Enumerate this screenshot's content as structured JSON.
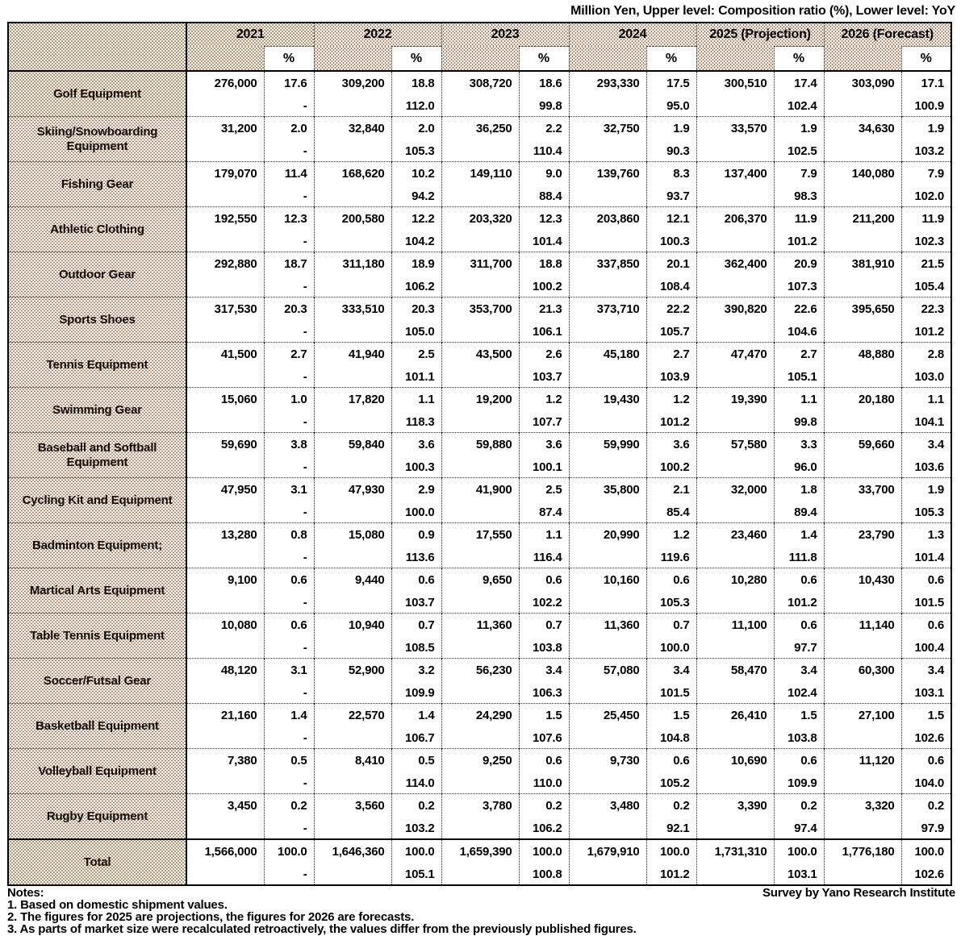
{
  "title": "Million Yen, Upper level: Composition ratio (%), Lower level: YoY",
  "labels": {
    "percent_sign": "%"
  },
  "colors": {
    "pattern_dot": "#a9703d",
    "border": "#000000",
    "text": "#000000"
  },
  "chart_data": {
    "type": "table",
    "title": "Million Yen, Upper level: Composition ratio (%), Lower level: YoY",
    "columns": [
      "2021",
      "2022",
      "2023",
      "2024",
      "2025 (Projection)",
      "2026 (Forecast)"
    ],
    "cell_structure": {
      "upper": "value and composition ratio (%)",
      "lower": "YoY"
    },
    "rows": [
      {
        "label": "Golf Equipment",
        "cells": [
          {
            "value": "276,000",
            "ratio": "17.6",
            "yoy": "-"
          },
          {
            "value": "309,200",
            "ratio": "18.8",
            "yoy": "112.0"
          },
          {
            "value": "308,720",
            "ratio": "18.6",
            "yoy": "99.8"
          },
          {
            "value": "293,330",
            "ratio": "17.5",
            "yoy": "95.0"
          },
          {
            "value": "300,510",
            "ratio": "17.4",
            "yoy": "102.4"
          },
          {
            "value": "303,090",
            "ratio": "17.1",
            "yoy": "100.9"
          }
        ]
      },
      {
        "label": "Skiing/Snowboarding Equipment",
        "cells": [
          {
            "value": "31,200",
            "ratio": "2.0",
            "yoy": "-"
          },
          {
            "value": "32,840",
            "ratio": "2.0",
            "yoy": "105.3"
          },
          {
            "value": "36,250",
            "ratio": "2.2",
            "yoy": "110.4"
          },
          {
            "value": "32,750",
            "ratio": "1.9",
            "yoy": "90.3"
          },
          {
            "value": "33,570",
            "ratio": "1.9",
            "yoy": "102.5"
          },
          {
            "value": "34,630",
            "ratio": "1.9",
            "yoy": "103.2"
          }
        ]
      },
      {
        "label": "Fishing Gear",
        "cells": [
          {
            "value": "179,070",
            "ratio": "11.4",
            "yoy": "-"
          },
          {
            "value": "168,620",
            "ratio": "10.2",
            "yoy": "94.2"
          },
          {
            "value": "149,110",
            "ratio": "9.0",
            "yoy": "88.4"
          },
          {
            "value": "139,760",
            "ratio": "8.3",
            "yoy": "93.7"
          },
          {
            "value": "137,400",
            "ratio": "7.9",
            "yoy": "98.3"
          },
          {
            "value": "140,080",
            "ratio": "7.9",
            "yoy": "102.0"
          }
        ]
      },
      {
        "label": "Athletic Clothing",
        "cells": [
          {
            "value": "192,550",
            "ratio": "12.3",
            "yoy": "-"
          },
          {
            "value": "200,580",
            "ratio": "12.2",
            "yoy": "104.2"
          },
          {
            "value": "203,320",
            "ratio": "12.3",
            "yoy": "101.4"
          },
          {
            "value": "203,860",
            "ratio": "12.1",
            "yoy": "100.3"
          },
          {
            "value": "206,370",
            "ratio": "11.9",
            "yoy": "101.2"
          },
          {
            "value": "211,200",
            "ratio": "11.9",
            "yoy": "102.3"
          }
        ]
      },
      {
        "label": "Outdoor Gear",
        "cells": [
          {
            "value": "292,880",
            "ratio": "18.7",
            "yoy": "-"
          },
          {
            "value": "311,180",
            "ratio": "18.9",
            "yoy": "106.2"
          },
          {
            "value": "311,700",
            "ratio": "18.8",
            "yoy": "100.2"
          },
          {
            "value": "337,850",
            "ratio": "20.1",
            "yoy": "108.4"
          },
          {
            "value": "362,400",
            "ratio": "20.9",
            "yoy": "107.3"
          },
          {
            "value": "381,910",
            "ratio": "21.5",
            "yoy": "105.4"
          }
        ]
      },
      {
        "label": "Sports Shoes",
        "cells": [
          {
            "value": "317,530",
            "ratio": "20.3",
            "yoy": "-"
          },
          {
            "value": "333,510",
            "ratio": "20.3",
            "yoy": "105.0"
          },
          {
            "value": "353,700",
            "ratio": "21.3",
            "yoy": "106.1"
          },
          {
            "value": "373,710",
            "ratio": "22.2",
            "yoy": "105.7"
          },
          {
            "value": "390,820",
            "ratio": "22.6",
            "yoy": "104.6"
          },
          {
            "value": "395,650",
            "ratio": "22.3",
            "yoy": "101.2"
          }
        ]
      },
      {
        "label": "Tennis Equipment",
        "cells": [
          {
            "value": "41,500",
            "ratio": "2.7",
            "yoy": "-"
          },
          {
            "value": "41,940",
            "ratio": "2.5",
            "yoy": "101.1"
          },
          {
            "value": "43,500",
            "ratio": "2.6",
            "yoy": "103.7"
          },
          {
            "value": "45,180",
            "ratio": "2.7",
            "yoy": "103.9"
          },
          {
            "value": "47,470",
            "ratio": "2.7",
            "yoy": "105.1"
          },
          {
            "value": "48,880",
            "ratio": "2.8",
            "yoy": "103.0"
          }
        ]
      },
      {
        "label": "Swimming Gear",
        "cells": [
          {
            "value": "15,060",
            "ratio": "1.0",
            "yoy": "-"
          },
          {
            "value": "17,820",
            "ratio": "1.1",
            "yoy": "118.3"
          },
          {
            "value": "19,200",
            "ratio": "1.2",
            "yoy": "107.7"
          },
          {
            "value": "19,430",
            "ratio": "1.2",
            "yoy": "101.2"
          },
          {
            "value": "19,390",
            "ratio": "1.1",
            "yoy": "99.8"
          },
          {
            "value": "20,180",
            "ratio": "1.1",
            "yoy": "104.1"
          }
        ]
      },
      {
        "label": "Baseball and Softball Equipment",
        "cells": [
          {
            "value": "59,690",
            "ratio": "3.8",
            "yoy": "-"
          },
          {
            "value": "59,840",
            "ratio": "3.6",
            "yoy": "100.3"
          },
          {
            "value": "59,880",
            "ratio": "3.6",
            "yoy": "100.1"
          },
          {
            "value": "59,990",
            "ratio": "3.6",
            "yoy": "100.2"
          },
          {
            "value": "57,580",
            "ratio": "3.3",
            "yoy": "96.0"
          },
          {
            "value": "59,660",
            "ratio": "3.4",
            "yoy": "103.6"
          }
        ]
      },
      {
        "label": "Cycling Kit and Equipment",
        "cells": [
          {
            "value": "47,950",
            "ratio": "3.1",
            "yoy": "-"
          },
          {
            "value": "47,930",
            "ratio": "2.9",
            "yoy": "100.0"
          },
          {
            "value": "41,900",
            "ratio": "2.5",
            "yoy": "87.4"
          },
          {
            "value": "35,800",
            "ratio": "2.1",
            "yoy": "85.4"
          },
          {
            "value": "32,000",
            "ratio": "1.8",
            "yoy": "89.4"
          },
          {
            "value": "33,700",
            "ratio": "1.9",
            "yoy": "105.3"
          }
        ]
      },
      {
        "label": "Badminton Equipment;",
        "cells": [
          {
            "value": "13,280",
            "ratio": "0.8",
            "yoy": "-"
          },
          {
            "value": "15,080",
            "ratio": "0.9",
            "yoy": "113.6"
          },
          {
            "value": "17,550",
            "ratio": "1.1",
            "yoy": "116.4"
          },
          {
            "value": "20,990",
            "ratio": "1.2",
            "yoy": "119.6"
          },
          {
            "value": "23,460",
            "ratio": "1.4",
            "yoy": "111.8"
          },
          {
            "value": "23,790",
            "ratio": "1.3",
            "yoy": "101.4"
          }
        ]
      },
      {
        "label": "Martical Arts Equipment",
        "cells": [
          {
            "value": "9,100",
            "ratio": "0.6",
            "yoy": "-"
          },
          {
            "value": "9,440",
            "ratio": "0.6",
            "yoy": "103.7"
          },
          {
            "value": "9,650",
            "ratio": "0.6",
            "yoy": "102.2"
          },
          {
            "value": "10,160",
            "ratio": "0.6",
            "yoy": "105.3"
          },
          {
            "value": "10,280",
            "ratio": "0.6",
            "yoy": "101.2"
          },
          {
            "value": "10,430",
            "ratio": "0.6",
            "yoy": "101.5"
          }
        ]
      },
      {
        "label": "Table Tennis Equipment",
        "cells": [
          {
            "value": "10,080",
            "ratio": "0.6",
            "yoy": "-"
          },
          {
            "value": "10,940",
            "ratio": "0.7",
            "yoy": "108.5"
          },
          {
            "value": "11,360",
            "ratio": "0.7",
            "yoy": "103.8"
          },
          {
            "value": "11,360",
            "ratio": "0.7",
            "yoy": "100.0"
          },
          {
            "value": "11,100",
            "ratio": "0.6",
            "yoy": "97.7"
          },
          {
            "value": "11,140",
            "ratio": "0.6",
            "yoy": "100.4"
          }
        ]
      },
      {
        "label": "Soccer/Futsal Gear",
        "cells": [
          {
            "value": "48,120",
            "ratio": "3.1",
            "yoy": "-"
          },
          {
            "value": "52,900",
            "ratio": "3.2",
            "yoy": "109.9"
          },
          {
            "value": "56,230",
            "ratio": "3.4",
            "yoy": "106.3"
          },
          {
            "value": "57,080",
            "ratio": "3.4",
            "yoy": "101.5"
          },
          {
            "value": "58,470",
            "ratio": "3.4",
            "yoy": "102.4"
          },
          {
            "value": "60,300",
            "ratio": "3.4",
            "yoy": "103.1"
          }
        ]
      },
      {
        "label": "Basketball Equipment",
        "cells": [
          {
            "value": "21,160",
            "ratio": "1.4",
            "yoy": "-"
          },
          {
            "value": "22,570",
            "ratio": "1.4",
            "yoy": "106.7"
          },
          {
            "value": "24,290",
            "ratio": "1.5",
            "yoy": "107.6"
          },
          {
            "value": "25,450",
            "ratio": "1.5",
            "yoy": "104.8"
          },
          {
            "value": "26,410",
            "ratio": "1.5",
            "yoy": "103.8"
          },
          {
            "value": "27,100",
            "ratio": "1.5",
            "yoy": "102.6"
          }
        ]
      },
      {
        "label": "Volleyball Equipment",
        "cells": [
          {
            "value": "7,380",
            "ratio": "0.5",
            "yoy": "-"
          },
          {
            "value": "8,410",
            "ratio": "0.5",
            "yoy": "114.0"
          },
          {
            "value": "9,250",
            "ratio": "0.6",
            "yoy": "110.0"
          },
          {
            "value": "9,730",
            "ratio": "0.6",
            "yoy": "105.2"
          },
          {
            "value": "10,690",
            "ratio": "0.6",
            "yoy": "109.9"
          },
          {
            "value": "11,120",
            "ratio": "0.6",
            "yoy": "104.0"
          }
        ]
      },
      {
        "label": "Rugby Equipment",
        "cells": [
          {
            "value": "3,450",
            "ratio": "0.2",
            "yoy": "-"
          },
          {
            "value": "3,560",
            "ratio": "0.2",
            "yoy": "103.2"
          },
          {
            "value": "3,780",
            "ratio": "0.2",
            "yoy": "106.2"
          },
          {
            "value": "3,480",
            "ratio": "0.2",
            "yoy": "92.1"
          },
          {
            "value": "3,390",
            "ratio": "0.2",
            "yoy": "97.4"
          },
          {
            "value": "3,320",
            "ratio": "0.2",
            "yoy": "97.9"
          }
        ]
      },
      {
        "label": "Total",
        "total": true,
        "cells": [
          {
            "value": "1,566,000",
            "ratio": "100.0",
            "yoy": "-"
          },
          {
            "value": "1,646,360",
            "ratio": "100.0",
            "yoy": "105.1"
          },
          {
            "value": "1,659,390",
            "ratio": "100.0",
            "yoy": "100.8"
          },
          {
            "value": "1,679,910",
            "ratio": "100.0",
            "yoy": "101.2"
          },
          {
            "value": "1,731,310",
            "ratio": "100.0",
            "yoy": "103.1"
          },
          {
            "value": "1,776,180",
            "ratio": "100.0",
            "yoy": "102.6"
          }
        ]
      }
    ]
  },
  "footer": {
    "notes_title": "Notes:",
    "survey_credit": "Survey by Yano Research Institute",
    "notes": [
      "1. Based on domestic shipment values.",
      "2. The figures for 2025 are projections, the figures for 2026 are forecasts.",
      "3. As parts of market size were recalculated retroactively, the values differ from the previously published figures."
    ]
  }
}
